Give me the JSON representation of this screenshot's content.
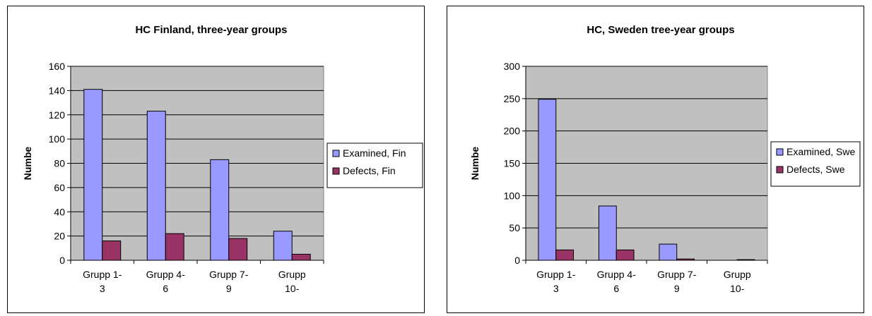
{
  "chart_data": [
    {
      "type": "bar",
      "title": "HC Finland, three-year groups",
      "ylabel": "Numbe",
      "xlabel": "",
      "ylim": [
        0,
        160
      ],
      "yticks": [
        0,
        20,
        40,
        60,
        80,
        100,
        120,
        140,
        160
      ],
      "categories": [
        [
          "Grupp 1-",
          "3"
        ],
        [
          "Grupp 4-",
          "6"
        ],
        [
          "Grupp 7-",
          "9"
        ],
        [
          "Grupp",
          "10-"
        ]
      ],
      "series": [
        {
          "name": "Examined, Fin",
          "color": "#9999ff",
          "values": [
            141,
            123,
            83,
            24
          ]
        },
        {
          "name": "Defects, Fin",
          "color": "#993366",
          "values": [
            16,
            22,
            18,
            5
          ]
        }
      ],
      "grid": true,
      "legend": "right",
      "plot_bg": "#c0c0c0"
    },
    {
      "type": "bar",
      "title": "HC, Sweden tree-year groups",
      "ylabel": "Numbe",
      "xlabel": "",
      "ylim": [
        0,
        300
      ],
      "yticks": [
        0,
        50,
        100,
        150,
        200,
        250,
        300
      ],
      "categories": [
        [
          "Grupp 1-",
          "3"
        ],
        [
          "Grupp 4-",
          "6"
        ],
        [
          "Grupp 7-",
          "9"
        ],
        [
          "Grupp",
          "10-"
        ]
      ],
      "series": [
        {
          "name": "Examined, Swe",
          "color": "#9999ff",
          "values": [
            249,
            84,
            25,
            0
          ]
        },
        {
          "name": "Defects, Swe",
          "color": "#993366",
          "values": [
            16,
            16,
            2,
            1
          ]
        }
      ],
      "grid": true,
      "legend": "right",
      "plot_bg": "#c0c0c0"
    }
  ]
}
